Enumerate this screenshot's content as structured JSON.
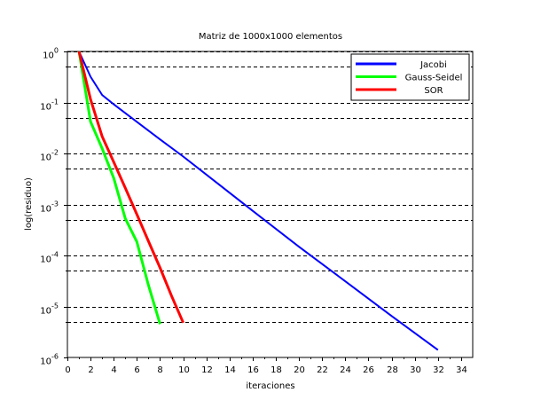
{
  "chart_data": {
    "type": "line",
    "title": "Matriz de 1000x1000 elementos",
    "xlabel": "iteraciones",
    "ylabel": "log(residuo)",
    "xlim": [
      0,
      35
    ],
    "ylim": [
      1e-06,
      1
    ],
    "yscale": "log",
    "x_ticks": [
      0,
      2,
      4,
      6,
      8,
      10,
      12,
      14,
      16,
      18,
      20,
      22,
      24,
      26,
      28,
      30,
      32,
      34
    ],
    "y_ticks": [
      {
        "base": "10",
        "exp": "0",
        "value": 1
      },
      {
        "base": "10",
        "exp": "-1",
        "value": 0.1
      },
      {
        "base": "10",
        "exp": "-2",
        "value": 0.01
      },
      {
        "base": "10",
        "exp": "-3",
        "value": 0.001
      },
      {
        "base": "10",
        "exp": "-4",
        "value": 0.0001
      },
      {
        "base": "10",
        "exp": "-5",
        "value": 1e-05
      },
      {
        "base": "10",
        "exp": "-6",
        "value": 1e-06
      }
    ],
    "grid": "dashed horizontal lines",
    "gridlines_y": [
      1,
      0.5,
      0.1,
      0.05,
      0.01,
      0.005,
      0.001,
      0.0005,
      0.0001,
      5e-05,
      1e-05,
      5e-06
    ],
    "legend_position": "top-right",
    "series": [
      {
        "name": "Jacobi",
        "color": "#0000ff",
        "x": [
          1,
          2,
          3,
          4,
          8,
          10,
          16,
          20,
          24,
          28,
          32
        ],
        "y": [
          1,
          0.32,
          0.14,
          0.092,
          0.0188,
          0.0087,
          0.00075,
          0.000148,
          3.1e-05,
          6.5e-06,
          1.4e-06
        ]
      },
      {
        "name": "Gauss-Seidel",
        "color": "#00ff00",
        "x": [
          1,
          2,
          3,
          4,
          5,
          6,
          7,
          8
        ],
        "y": [
          1,
          0.042,
          0.0125,
          0.0033,
          0.00053,
          0.000185,
          2.6e-05,
          4.5e-06
        ]
      },
      {
        "name": "SOR",
        "color": "#ff0000",
        "x": [
          1,
          2,
          3,
          4,
          5,
          6,
          7,
          8,
          9,
          10
        ],
        "y": [
          1,
          0.115,
          0.0215,
          0.0068,
          0.0021,
          0.00064,
          0.00019,
          5.7e-05,
          1.6e-05,
          4.8e-06
        ]
      }
    ]
  }
}
